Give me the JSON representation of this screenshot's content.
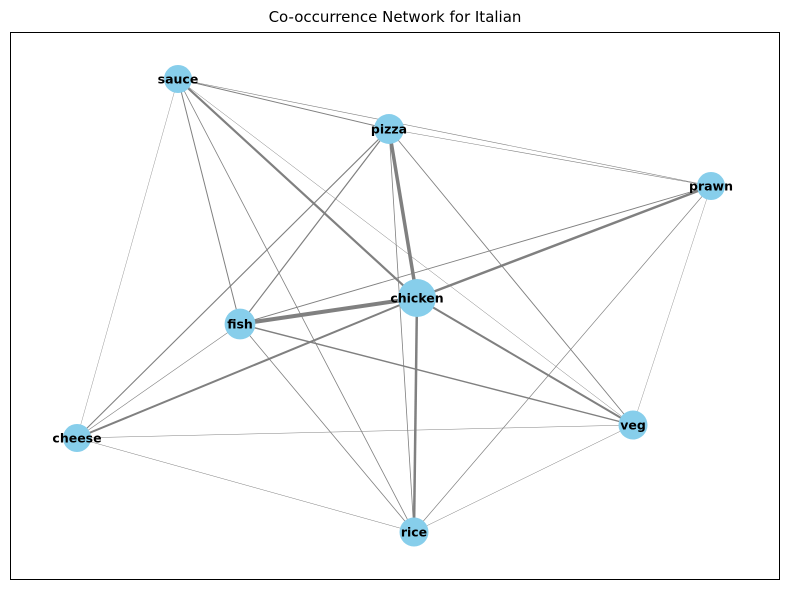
{
  "title": "Co-occurrence Network for Italian",
  "colors": {
    "node": "#87ceeb",
    "edge": "#808080"
  },
  "nodes": [
    {
      "id": "sauce",
      "label": "sauce",
      "size": 0.45
    },
    {
      "id": "pizza",
      "label": "pizza",
      "size": 0.55
    },
    {
      "id": "prawn",
      "label": "prawn",
      "size": 0.45
    },
    {
      "id": "chicken",
      "label": "chicken",
      "size": 1.0
    },
    {
      "id": "fish",
      "label": "fish",
      "size": 0.6
    },
    {
      "id": "cheese",
      "label": "cheese",
      "size": 0.45
    },
    {
      "id": "veg",
      "label": "veg",
      "size": 0.5
    },
    {
      "id": "rice",
      "label": "rice",
      "size": 0.5
    }
  ],
  "edges": [
    {
      "source": "sauce",
      "target": "pizza",
      "weight": 1.0
    },
    {
      "source": "sauce",
      "target": "prawn",
      "weight": 0.6
    },
    {
      "source": "sauce",
      "target": "chicken",
      "weight": 2.2
    },
    {
      "source": "sauce",
      "target": "fish",
      "weight": 1.0
    },
    {
      "source": "sauce",
      "target": "cheese",
      "weight": 0.4
    },
    {
      "source": "sauce",
      "target": "veg",
      "weight": 0.5
    },
    {
      "source": "sauce",
      "target": "rice",
      "weight": 0.8
    },
    {
      "source": "pizza",
      "target": "prawn",
      "weight": 0.6
    },
    {
      "source": "pizza",
      "target": "chicken",
      "weight": 3.5
    },
    {
      "source": "pizza",
      "target": "fish",
      "weight": 1.2
    },
    {
      "source": "pizza",
      "target": "cheese",
      "weight": 1.1
    },
    {
      "source": "pizza",
      "target": "veg",
      "weight": 0.9
    },
    {
      "source": "pizza",
      "target": "rice",
      "weight": 0.8
    },
    {
      "source": "prawn",
      "target": "chicken",
      "weight": 2.5
    },
    {
      "source": "prawn",
      "target": "fish",
      "weight": 0.9
    },
    {
      "source": "prawn",
      "target": "veg",
      "weight": 0.4
    },
    {
      "source": "prawn",
      "target": "rice",
      "weight": 0.7
    },
    {
      "source": "chicken",
      "target": "fish",
      "weight": 4.0
    },
    {
      "source": "chicken",
      "target": "cheese",
      "weight": 2.0
    },
    {
      "source": "chicken",
      "target": "veg",
      "weight": 2.0
    },
    {
      "source": "chicken",
      "target": "rice",
      "weight": 2.5
    },
    {
      "source": "fish",
      "target": "cheese",
      "weight": 0.6
    },
    {
      "source": "fish",
      "target": "veg",
      "weight": 1.4
    },
    {
      "source": "fish",
      "target": "rice",
      "weight": 0.8
    },
    {
      "source": "cheese",
      "target": "veg",
      "weight": 0.5
    },
    {
      "source": "cheese",
      "target": "rice",
      "weight": 0.5
    },
    {
      "source": "veg",
      "target": "rice",
      "weight": 0.5
    }
  ]
}
